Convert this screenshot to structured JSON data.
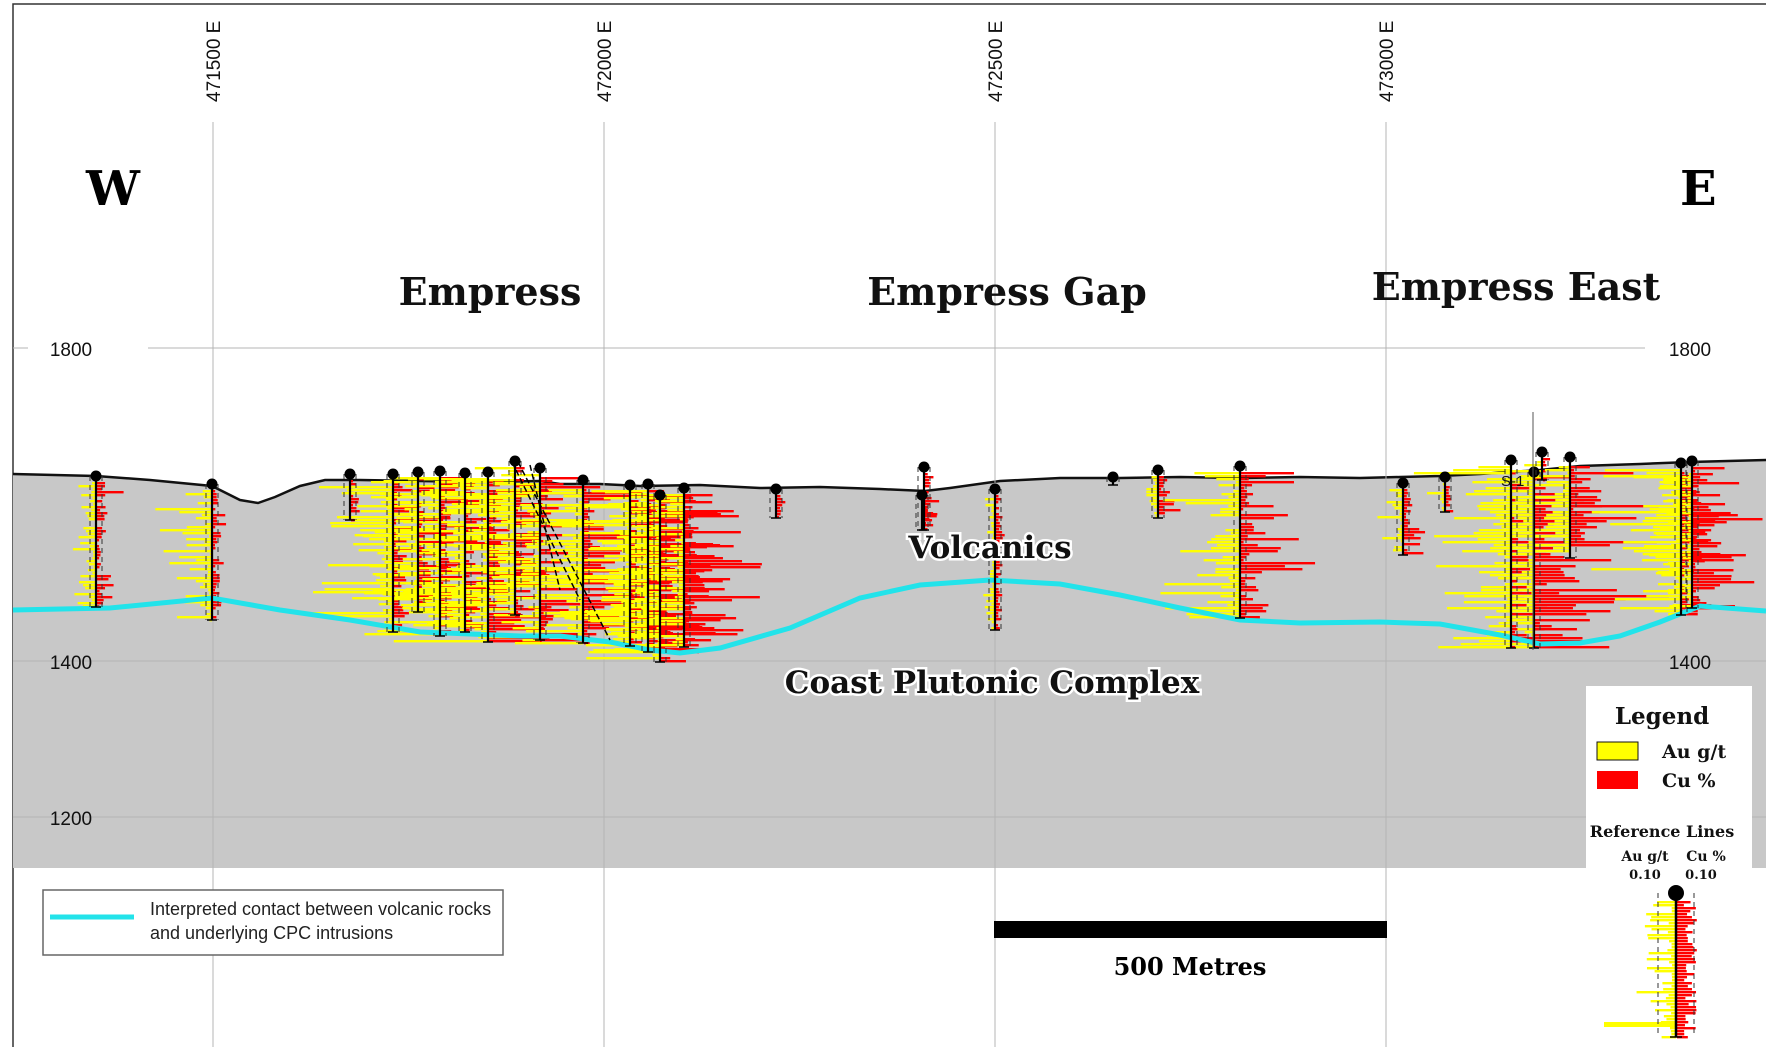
{
  "section": {
    "direction_west": "W",
    "direction_east": "E",
    "easting_labels": [
      "471500 E",
      "472000 E",
      "472500 E",
      "473000 E"
    ],
    "elevation_labels": [
      "1800",
      "1400",
      "1200"
    ],
    "zone_labels": [
      "Empress",
      "Empress Gap",
      "Empress East"
    ],
    "rock_labels": {
      "upper": "Volcanics",
      "lower": "Coast Plutonic Complex"
    },
    "drillhole_tag": "S-1"
  },
  "contact_legend": {
    "line1": "Interpreted contact between volcanic rocks",
    "line2": "and underlying CPC intrusions",
    "color": "#22e3ea"
  },
  "scale_bar": {
    "label": "500 Metres"
  },
  "legend": {
    "title": "Legend",
    "items": [
      {
        "label": "Au g/t",
        "color": "#ffff00"
      },
      {
        "label": "Cu %",
        "color": "#ff0000"
      }
    ],
    "reference_title": "Reference Lines",
    "reference_au_label": "Au g/t",
    "reference_cu_label": "Cu %",
    "reference_au_value": "0.10",
    "reference_cu_value": "0.10"
  },
  "colors": {
    "ground": "#c8c8c8",
    "au": "#ffff00",
    "cu": "#ff0000",
    "contact": "#22e3ea",
    "grid": "#b4b4b4"
  }
}
